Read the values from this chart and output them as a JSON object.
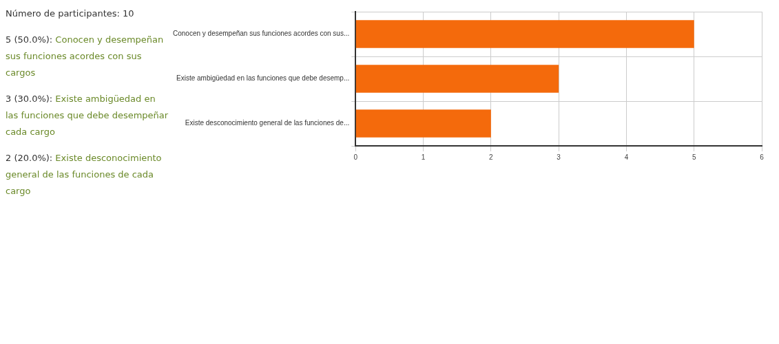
{
  "chart_data": {
    "type": "bar",
    "orientation": "horizontal",
    "categories": [
      "Conocen y desempeñan sus funciones acordes con sus...",
      "Existe ambigüedad en las funciones que debe desemp...",
      "Existe desconocimiento general de las funciones de..."
    ],
    "values": [
      5,
      3,
      2
    ],
    "color": "#f46a0c",
    "xlim": [
      0,
      6
    ],
    "xticks": [
      0,
      1,
      2,
      3,
      4,
      5,
      6
    ],
    "grid": true,
    "legend": false,
    "annotations": [
      "Número de participantes: 10",
      "5 (50.0%): Conocen y desempeñan sus funciones acordes con sus cargos",
      "3 (30.0%): Existe ambigüedad en las funciones que debe desempeñar cada cargo",
      "2 (20.0%): Existe desconocimiento general de las funciones de cada cargo"
    ]
  }
}
